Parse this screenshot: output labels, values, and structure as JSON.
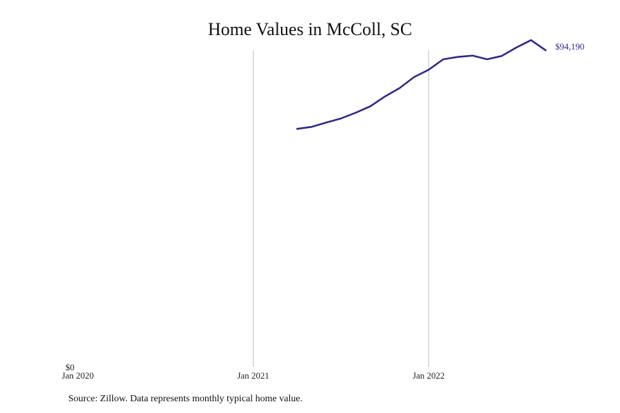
{
  "chart_data": {
    "type": "line",
    "title": "Home Values in McColl, SC",
    "xlabel": "",
    "ylabel": "",
    "x_ticks": [
      "Jan 2020",
      "Jan 2021",
      "Jan 2022"
    ],
    "y_ticks": [
      "$0"
    ],
    "xlim": [
      "2020-01",
      "2022-09"
    ],
    "ylim": [
      0,
      94190
    ],
    "grid": "vertical",
    "series": [
      {
        "color": "#2e2a8c",
        "x": [
          "2021-04",
          "2021-05",
          "2021-06",
          "2021-07",
          "2021-08",
          "2021-09",
          "2021-10",
          "2021-11",
          "2021-12",
          "2022-01",
          "2022-02",
          "2022-03",
          "2022-04",
          "2022-05",
          "2022-06",
          "2022-07",
          "2022-08",
          "2022-09"
        ],
        "values": [
          70800,
          71400,
          72700,
          73900,
          75600,
          77500,
          80400,
          82900,
          86200,
          88400,
          91500,
          92200,
          92600,
          91500,
          92500,
          95000,
          97200,
          94190
        ],
        "end_label": "$94,190"
      }
    ]
  },
  "source": "Source: Zillow. Data represents monthly typical home value."
}
